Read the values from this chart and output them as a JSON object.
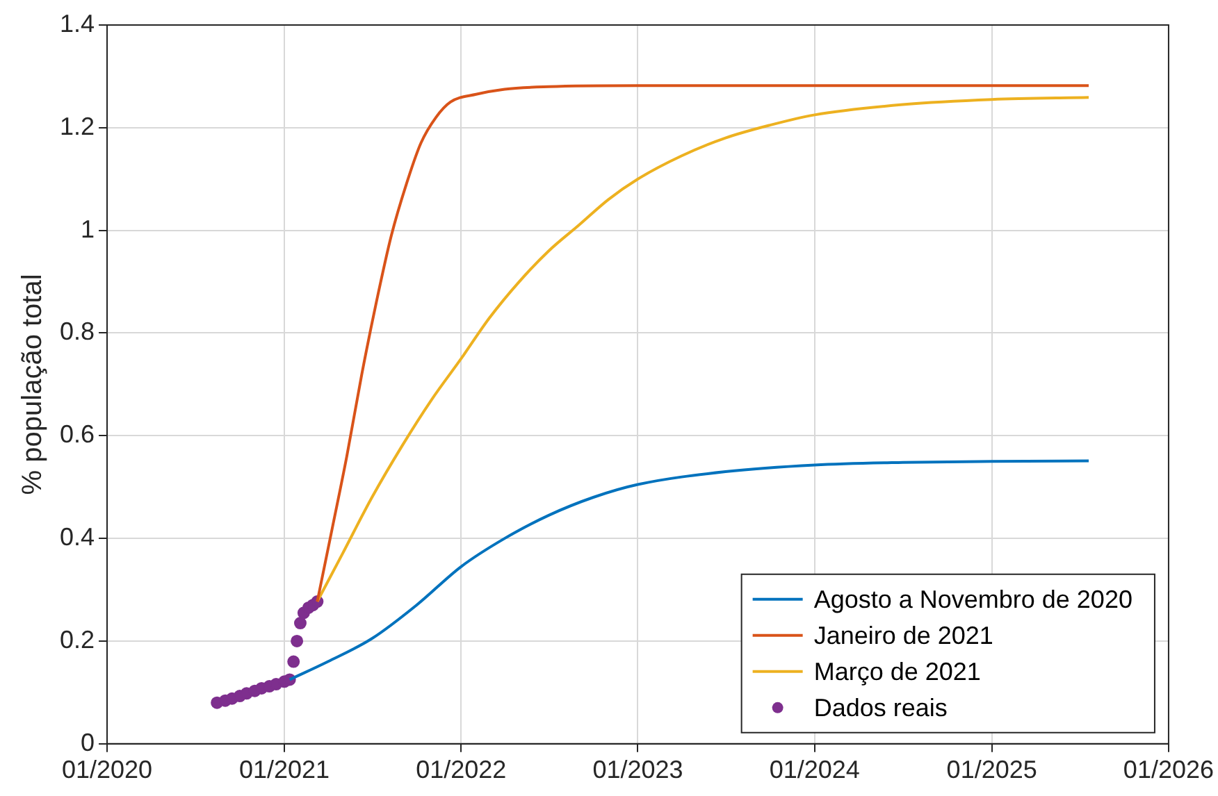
{
  "chart_data": {
    "type": "line",
    "ylabel": "% população total",
    "xlim": [
      "2020-01-01",
      "2026-01-01"
    ],
    "ylim": [
      0,
      1.4
    ],
    "xticks": [
      {
        "value": "2020-01-01",
        "label": "01/2020"
      },
      {
        "value": "2021-01-01",
        "label": "01/2021"
      },
      {
        "value": "2022-01-01",
        "label": "01/2022"
      },
      {
        "value": "2023-01-01",
        "label": "01/2023"
      },
      {
        "value": "2024-01-01",
        "label": "01/2024"
      },
      {
        "value": "2025-01-01",
        "label": "01/2025"
      },
      {
        "value": "2026-01-01",
        "label": "01/2026"
      }
    ],
    "yticks": [
      0,
      0.2,
      0.4,
      0.6,
      0.8,
      1,
      1.2,
      1.4
    ],
    "grid": true,
    "legend": "bottom right",
    "line_style": "solid",
    "series": [
      {
        "name": "Agosto a Novembro de 2020",
        "color": "#0072bd",
        "marker": "none",
        "x": [
          "2021-01-12",
          "2021-04-01",
          "2021-07-01",
          "2021-10-01",
          "2022-01-01",
          "2022-04-01",
          "2022-07-01",
          "2022-10-01",
          "2023-01-01",
          "2023-07-01",
          "2024-01-01",
          "2024-07-01",
          "2025-01-01",
          "2025-07-20"
        ],
        "values": [
          0.125,
          0.16,
          0.205,
          0.27,
          0.345,
          0.4,
          0.445,
          0.48,
          0.505,
          0.53,
          0.543,
          0.548,
          0.55,
          0.551
        ]
      },
      {
        "name": "Janeiro de 2021",
        "color": "#d95319",
        "marker": "none",
        "x": [
          "2021-03-10",
          "2021-04-10",
          "2021-05-10",
          "2021-06-10",
          "2021-07-10",
          "2021-08-10",
          "2021-09-10",
          "2021-10-10",
          "2021-11-10",
          "2021-12-10",
          "2022-02-01",
          "2022-04-01",
          "2022-07-01",
          "2023-01-01",
          "2025-07-20"
        ],
        "values": [
          0.277,
          0.42,
          0.56,
          0.72,
          0.86,
          0.99,
          1.09,
          1.17,
          1.22,
          1.25,
          1.265,
          1.275,
          1.28,
          1.282,
          1.282
        ]
      },
      {
        "name": "Março de 2021",
        "color": "#edb120",
        "marker": "none",
        "x": [
          "2021-03-10",
          "2021-05-01",
          "2021-07-01",
          "2021-09-01",
          "2021-11-01",
          "2022-01-01",
          "2022-03-01",
          "2022-05-01",
          "2022-07-01",
          "2022-09-01",
          "2022-11-01",
          "2023-01-01",
          "2023-04-01",
          "2023-07-01",
          "2023-10-01",
          "2024-01-01",
          "2024-07-01",
          "2025-01-01",
          "2025-07-20"
        ],
        "values": [
          0.277,
          0.37,
          0.48,
          0.58,
          0.67,
          0.75,
          0.83,
          0.9,
          0.96,
          1.01,
          1.06,
          1.1,
          1.145,
          1.18,
          1.205,
          1.225,
          1.245,
          1.255,
          1.259
        ]
      },
      {
        "name": "Dados reais",
        "color": "#7e2f8e",
        "type": "scatter",
        "marker": "circle",
        "x": [
          "2020-08-15",
          "2020-09-01",
          "2020-09-15",
          "2020-10-01",
          "2020-10-15",
          "2020-11-01",
          "2020-11-15",
          "2020-12-01",
          "2020-12-15",
          "2021-01-01",
          "2021-01-12",
          "2021-01-20",
          "2021-01-27",
          "2021-02-03",
          "2021-02-10",
          "2021-02-20",
          "2021-03-01",
          "2021-03-10"
        ],
        "values": [
          0.08,
          0.084,
          0.088,
          0.093,
          0.098,
          0.103,
          0.108,
          0.112,
          0.116,
          0.121,
          0.125,
          0.16,
          0.2,
          0.235,
          0.255,
          0.265,
          0.27,
          0.277
        ]
      }
    ]
  }
}
